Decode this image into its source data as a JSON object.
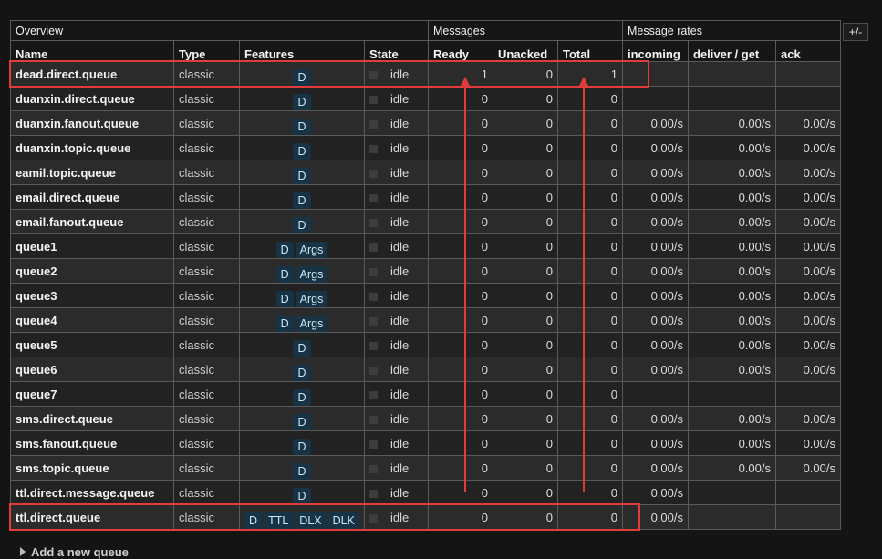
{
  "header": {
    "groups": [
      "Overview",
      "Messages",
      "Message rates"
    ],
    "columns": [
      "Name",
      "Type",
      "Features",
      "State",
      "Ready",
      "Unacked",
      "Total",
      "incoming",
      "deliver / get",
      "ack"
    ],
    "toggle_label": "+/-"
  },
  "rows": [
    {
      "name": "dead.direct.queue",
      "type": "classic",
      "features": [
        "D"
      ],
      "state": "idle",
      "ready": "1",
      "unacked": "0",
      "total": "1",
      "incoming": "",
      "deliver": "",
      "ack": ""
    },
    {
      "name": "duanxin.direct.queue",
      "type": "classic",
      "features": [
        "D"
      ],
      "state": "idle",
      "ready": "0",
      "unacked": "0",
      "total": "0",
      "incoming": "",
      "deliver": "",
      "ack": ""
    },
    {
      "name": "duanxin.fanout.queue",
      "type": "classic",
      "features": [
        "D"
      ],
      "state": "idle",
      "ready": "0",
      "unacked": "0",
      "total": "0",
      "incoming": "0.00/s",
      "deliver": "0.00/s",
      "ack": "0.00/s"
    },
    {
      "name": "duanxin.topic.queue",
      "type": "classic",
      "features": [
        "D"
      ],
      "state": "idle",
      "ready": "0",
      "unacked": "0",
      "total": "0",
      "incoming": "0.00/s",
      "deliver": "0.00/s",
      "ack": "0.00/s"
    },
    {
      "name": "eamil.topic.queue",
      "type": "classic",
      "features": [
        "D"
      ],
      "state": "idle",
      "ready": "0",
      "unacked": "0",
      "total": "0",
      "incoming": "0.00/s",
      "deliver": "0.00/s",
      "ack": "0.00/s"
    },
    {
      "name": "email.direct.queue",
      "type": "classic",
      "features": [
        "D"
      ],
      "state": "idle",
      "ready": "0",
      "unacked": "0",
      "total": "0",
      "incoming": "0.00/s",
      "deliver": "0.00/s",
      "ack": "0.00/s"
    },
    {
      "name": "email.fanout.queue",
      "type": "classic",
      "features": [
        "D"
      ],
      "state": "idle",
      "ready": "0",
      "unacked": "0",
      "total": "0",
      "incoming": "0.00/s",
      "deliver": "0.00/s",
      "ack": "0.00/s"
    },
    {
      "name": "queue1",
      "type": "classic",
      "features": [
        "D",
        "Args"
      ],
      "state": "idle",
      "ready": "0",
      "unacked": "0",
      "total": "0",
      "incoming": "0.00/s",
      "deliver": "0.00/s",
      "ack": "0.00/s"
    },
    {
      "name": "queue2",
      "type": "classic",
      "features": [
        "D",
        "Args"
      ],
      "state": "idle",
      "ready": "0",
      "unacked": "0",
      "total": "0",
      "incoming": "0.00/s",
      "deliver": "0.00/s",
      "ack": "0.00/s"
    },
    {
      "name": "queue3",
      "type": "classic",
      "features": [
        "D",
        "Args"
      ],
      "state": "idle",
      "ready": "0",
      "unacked": "0",
      "total": "0",
      "incoming": "0.00/s",
      "deliver": "0.00/s",
      "ack": "0.00/s"
    },
    {
      "name": "queue4",
      "type": "classic",
      "features": [
        "D",
        "Args"
      ],
      "state": "idle",
      "ready": "0",
      "unacked": "0",
      "total": "0",
      "incoming": "0.00/s",
      "deliver": "0.00/s",
      "ack": "0.00/s"
    },
    {
      "name": "queue5",
      "type": "classic",
      "features": [
        "D"
      ],
      "state": "idle",
      "ready": "0",
      "unacked": "0",
      "total": "0",
      "incoming": "0.00/s",
      "deliver": "0.00/s",
      "ack": "0.00/s"
    },
    {
      "name": "queue6",
      "type": "classic",
      "features": [
        "D"
      ],
      "state": "idle",
      "ready": "0",
      "unacked": "0",
      "total": "0",
      "incoming": "0.00/s",
      "deliver": "0.00/s",
      "ack": "0.00/s"
    },
    {
      "name": "queue7",
      "type": "classic",
      "features": [
        "D"
      ],
      "state": "idle",
      "ready": "0",
      "unacked": "0",
      "total": "0",
      "incoming": "",
      "deliver": "",
      "ack": ""
    },
    {
      "name": "sms.direct.queue",
      "type": "classic",
      "features": [
        "D"
      ],
      "state": "idle",
      "ready": "0",
      "unacked": "0",
      "total": "0",
      "incoming": "0.00/s",
      "deliver": "0.00/s",
      "ack": "0.00/s"
    },
    {
      "name": "sms.fanout.queue",
      "type": "classic",
      "features": [
        "D"
      ],
      "state": "idle",
      "ready": "0",
      "unacked": "0",
      "total": "0",
      "incoming": "0.00/s",
      "deliver": "0.00/s",
      "ack": "0.00/s"
    },
    {
      "name": "sms.topic.queue",
      "type": "classic",
      "features": [
        "D"
      ],
      "state": "idle",
      "ready": "0",
      "unacked": "0",
      "total": "0",
      "incoming": "0.00/s",
      "deliver": "0.00/s",
      "ack": "0.00/s"
    },
    {
      "name": "ttl.direct.message.queue",
      "type": "classic",
      "features": [
        "D"
      ],
      "state": "idle",
      "ready": "0",
      "unacked": "0",
      "total": "0",
      "incoming": "0.00/s",
      "deliver": "",
      "ack": ""
    },
    {
      "name": "ttl.direct.queue",
      "type": "classic",
      "features": [
        "D",
        "TTL",
        "DLX",
        "DLK"
      ],
      "state": "idle",
      "ready": "0",
      "unacked": "0",
      "total": "0",
      "incoming": "0.00/s",
      "deliver": "",
      "ack": ""
    }
  ],
  "add_queue_label": "Add a new queue",
  "colors": {
    "annotation": "#e23b3b",
    "badge_bg": "#163445",
    "row_odd": "#2b2b2b",
    "row_even": "#222222"
  }
}
